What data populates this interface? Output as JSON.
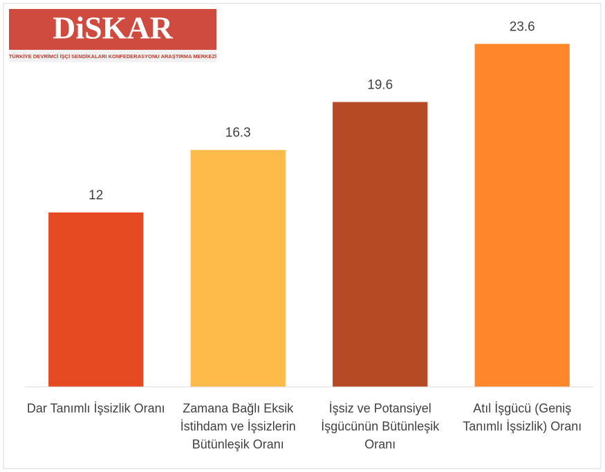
{
  "logo": {
    "name": "DiSKAR",
    "subtitle": "TÜRKİYE DEVRİMCİ İŞÇİ SENDİKALARI KONFEDERASYONU ARAŞTIRMA MERKEZİ"
  },
  "chart_data": {
    "type": "bar",
    "categories": [
      "Dar Tanımlı İşsizlik Oranı",
      "Zamana Bağlı Eksik İstihdam ve İşsizlerin Bütünleşik Oranı",
      "İşsiz ve Potansiyel İşgücünün Bütünleşik Oranı",
      "Atıl İşgücü (Geniş Tanımlı İşsizlik) Oranı"
    ],
    "values": [
      12,
      16.3,
      19.6,
      23.6
    ],
    "colors": [
      "#e64a23",
      "#ffbb4a",
      "#b54a24",
      "#ff862a"
    ],
    "ylim": [
      0,
      24
    ]
  }
}
